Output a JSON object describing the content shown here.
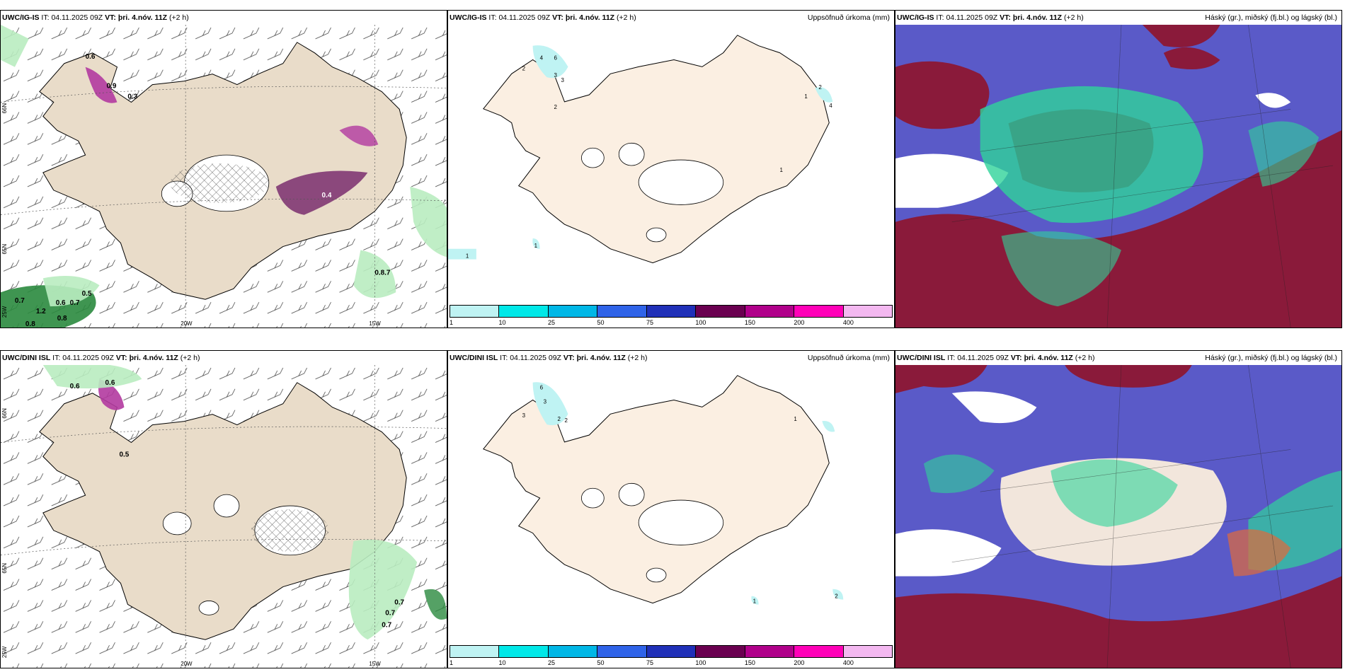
{
  "colors": {
    "land": "#e9dcc9",
    "land_precip": "#fbefe2",
    "rain_green": "#b9ecc0",
    "rain_dark": "#2a8a3e",
    "snow_purple": "#7a2e6e",
    "cloud_high": "#2fd39a",
    "cloud_mid": "#5a5ac8",
    "cloud_low": "#8a1a3a"
  },
  "rows": [
    {
      "model": "UWC/IG-IS",
      "wind_panel": {
        "it_label": "IT:",
        "it_value": "04.11.2025 09Z",
        "vt_label": "VT: þri. 4.nóv. 11Z",
        "lead": "(+2 h)",
        "grid_labels": [
          "66N",
          "65N",
          "20W",
          "15W",
          "25W"
        ],
        "values": [
          "0.6",
          "0.7",
          "0.5",
          "0.6",
          "0.7",
          "1.2",
          "0.9",
          "0.8",
          "0.8",
          "0.8.7",
          "0.4",
          "0.3"
        ]
      },
      "precip_panel": {
        "it_label": "IT:",
        "it_value": "04.11.2025 09Z",
        "vt_label": "VT: þri. 4.nóv. 11Z",
        "lead": "(+2 h)",
        "title_right": "Uppsöfnuð úrkoma (mm)",
        "values": [
          "2",
          "4",
          "6",
          "3",
          "3",
          "2",
          "2",
          "1",
          "4",
          "1",
          "1",
          "1"
        ]
      },
      "cloud_panel": {
        "it_label": "IT:",
        "it_value": "04.11.2025 09Z",
        "vt_label": "VT: þri. 4.nóv. 11Z",
        "lead": "(+2 h)",
        "title_right": "Háský (gr.), miðský (fj.bl.) og lágský (bl.)"
      }
    },
    {
      "model": "UWC/DINI ISL",
      "wind_panel": {
        "it_label": "IT:",
        "it_value": "04.11.2025 09Z",
        "vt_label": "VT: þri. 4.nóv. 11Z",
        "lead": "(+2 h)",
        "grid_labels": [
          "66N",
          "65N",
          "20W",
          "15W",
          "25W"
        ],
        "values": [
          "0.6",
          "0.6",
          "0.7",
          "0.7",
          "0.7",
          "0.5"
        ]
      },
      "precip_panel": {
        "it_label": "IT:",
        "it_value": "04.11.2025 09Z",
        "vt_label": "VT: þri. 4.nóv. 11Z",
        "lead": "(+2 h)",
        "title_right": "Uppsöfnuð úrkoma (mm)",
        "values": [
          "6",
          "3",
          "3",
          "2",
          "2",
          "1",
          "1",
          "2"
        ]
      },
      "cloud_panel": {
        "it_label": "IT:",
        "it_value": "04.11.2025 09Z",
        "vt_label": "VT: þri. 4.nóv. 11Z",
        "lead": "(+2 h)",
        "title_right": "Háský (gr.), miðský (fj.bl.) og lágský (bl.)"
      }
    }
  ],
  "colorbar": {
    "colors": [
      "#bff3f3",
      "#00e8e8",
      "#00b7e6",
      "#2f63e8",
      "#2030b8",
      "#6a0050",
      "#b0008a",
      "#ff00b8",
      "#f3b8f0"
    ],
    "ticks": [
      "1",
      "10",
      "25",
      "50",
      "75",
      "100",
      "150",
      "200",
      "400"
    ]
  }
}
